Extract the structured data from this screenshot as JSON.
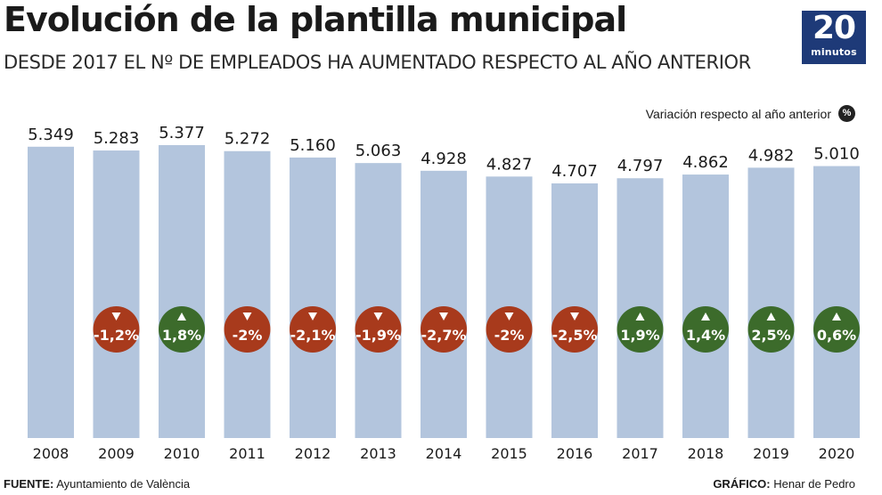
{
  "header": {
    "title": "Evolución de la plantilla municipal",
    "subtitle": "DESDE 2017 EL Nº DE EMPLEADOS HA AUMENTADO RESPECTO AL AÑO ANTERIOR"
  },
  "logo": {
    "number": "20",
    "word": "minutos"
  },
  "legend": {
    "label": "Variación respecto al año anterior",
    "badge": "%"
  },
  "footer": {
    "source_label": "FUENTE:",
    "source_value": " Ayuntamiento de València",
    "credit_label": "GRÁFICO:",
    "credit_value": " Henar de Pedro"
  },
  "colors": {
    "bar": "#b3c5dd",
    "up": "#3c6b2b",
    "down": "#a83a1c"
  },
  "chart_data": {
    "type": "bar",
    "categories": [
      "2008",
      "2009",
      "2010",
      "2011",
      "2012",
      "2013",
      "2014",
      "2015",
      "2016",
      "2017",
      "2018",
      "2019",
      "2020"
    ],
    "values": [
      5349,
      5283,
      5377,
      5272,
      5160,
      5063,
      4928,
      4827,
      4707,
      4797,
      4862,
      4982,
      5010
    ],
    "value_labels": [
      "5.349",
      "5.283",
      "5.377",
      "5.272",
      "5.160",
      "5.063",
      "4.928",
      "4.827",
      "4.707",
      "4.797",
      "4.862",
      "4.982",
      "5.010"
    ],
    "changes": [
      null,
      "-1,2%",
      "1,8%",
      "-2%",
      "-2,1%",
      "-1,9%",
      "-2,7%",
      "-2%",
      "-2,5%",
      "1,9%",
      "1,4%",
      "2,5%",
      "0,6%"
    ],
    "directions": [
      null,
      "down",
      "up",
      "down",
      "down",
      "down",
      "down",
      "down",
      "down",
      "up",
      "up",
      "up",
      "up"
    ],
    "title": "Evolución de la plantilla municipal",
    "xlabel": "",
    "ylabel": "",
    "grid": false,
    "legend": "top-right"
  }
}
